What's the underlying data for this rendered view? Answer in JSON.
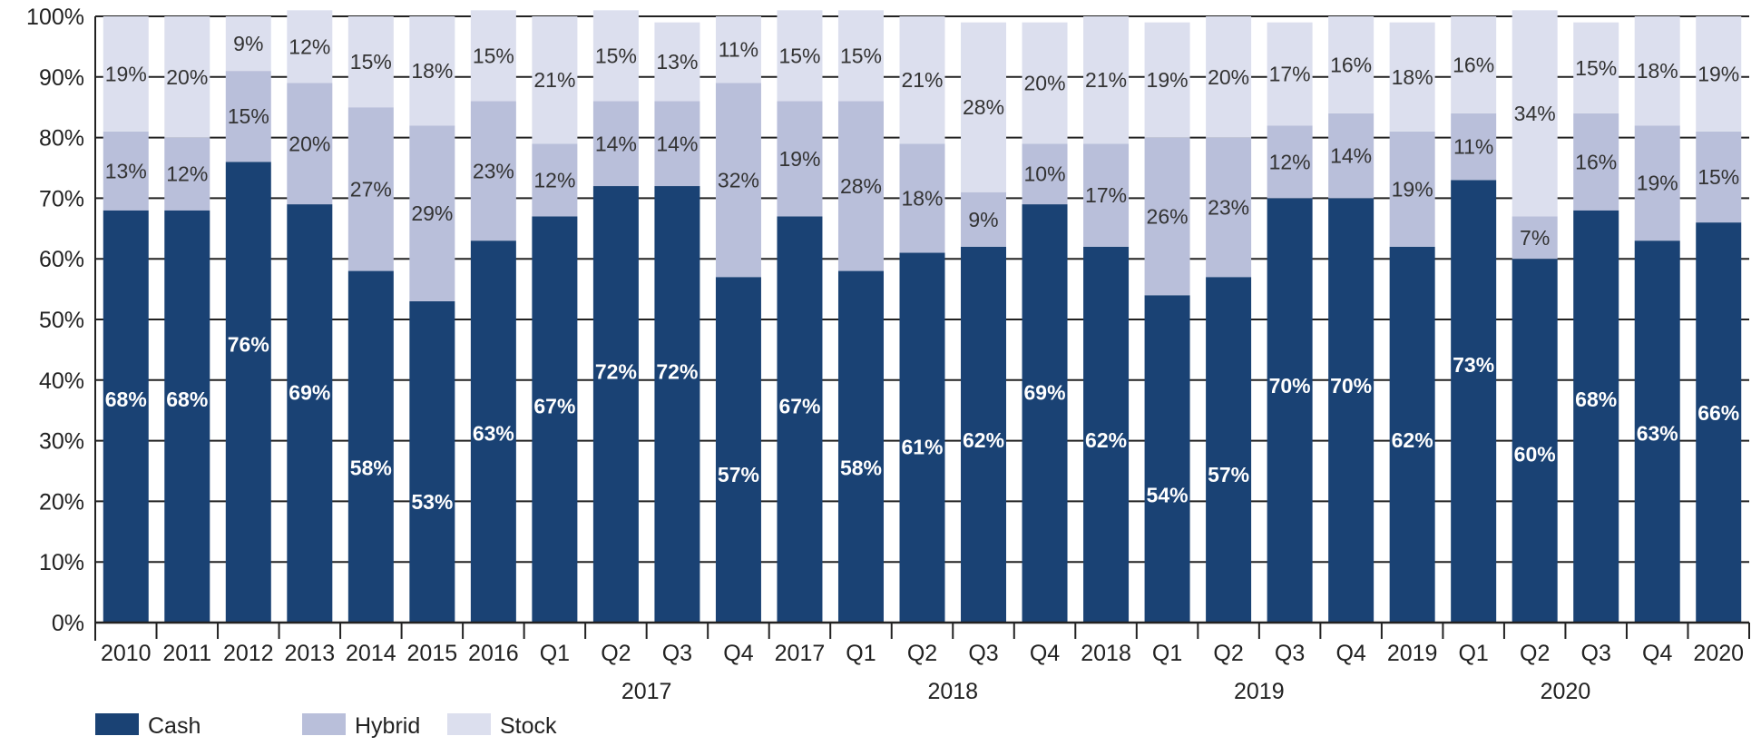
{
  "chart_data": {
    "type": "bar",
    "stacked": true,
    "title": "",
    "xlabel": "",
    "ylabel": "",
    "ylim": [
      0,
      100
    ],
    "y_ticks": [
      "0%",
      "10%",
      "20%",
      "30%",
      "40%",
      "50%",
      "60%",
      "70%",
      "80%",
      "90%",
      "100%"
    ],
    "grid": true,
    "legend_position": "bottom-left",
    "categories": [
      "2010",
      "2011",
      "2012",
      "2013",
      "2014",
      "2015",
      "2016",
      "Q1",
      "Q2",
      "Q3",
      "Q4",
      "2017",
      "Q1",
      "Q2",
      "Q3",
      "Q4",
      "2018",
      "Q1",
      "Q2",
      "Q3",
      "Q4",
      "2019",
      "Q1",
      "Q2",
      "Q3",
      "Q4",
      "2020"
    ],
    "category_groups": [
      {
        "label": "2017",
        "from": 7,
        "to": 10
      },
      {
        "label": "2018",
        "from": 12,
        "to": 15
      },
      {
        "label": "2019",
        "from": 17,
        "to": 20
      },
      {
        "label": "2020",
        "from": 22,
        "to": 25
      }
    ],
    "series": [
      {
        "name": "Cash",
        "color": "#1a4274",
        "values": [
          68,
          68,
          76,
          69,
          58,
          53,
          63,
          67,
          72,
          72,
          57,
          67,
          58,
          61,
          62,
          69,
          62,
          54,
          57,
          70,
          70,
          62,
          73,
          60,
          68,
          63,
          66
        ]
      },
      {
        "name": "Hybrid",
        "color": "#b9bfda",
        "values": [
          13,
          12,
          15,
          20,
          27,
          29,
          23,
          12,
          14,
          14,
          32,
          19,
          28,
          18,
          9,
          10,
          17,
          26,
          23,
          12,
          14,
          19,
          11,
          7,
          16,
          19,
          15
        ]
      },
      {
        "name": "Stock",
        "color": "#dcdfee",
        "values": [
          19,
          20,
          9,
          12,
          15,
          18,
          15,
          21,
          15,
          13,
          11,
          15,
          15,
          21,
          28,
          20,
          21,
          19,
          20,
          17,
          16,
          18,
          16,
          34,
          15,
          18,
          19
        ]
      }
    ]
  }
}
